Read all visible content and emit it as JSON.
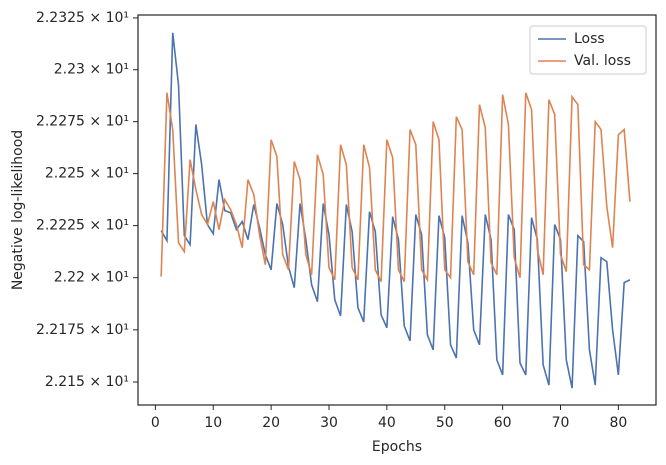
{
  "chart_data": {
    "type": "line",
    "x_label": "Epochs",
    "y_label": "Negative log-likelihood",
    "x": [
      1,
      2,
      3,
      4,
      5,
      6,
      7,
      8,
      9,
      10,
      11,
      12,
      13,
      14,
      15,
      16,
      17,
      18,
      19,
      20,
      21,
      22,
      23,
      24,
      25,
      26,
      27,
      28,
      29,
      30,
      31,
      32,
      33,
      34,
      35,
      36,
      37,
      38,
      39,
      40,
      41,
      42,
      43,
      44,
      45,
      46,
      47,
      48,
      49,
      50,
      51,
      52,
      53,
      54,
      55,
      56,
      57,
      58,
      59,
      60,
      61,
      62,
      63,
      64,
      65,
      66,
      67,
      68,
      69,
      70,
      71,
      72,
      73,
      74,
      75,
      76,
      77,
      78,
      79,
      80,
      81,
      82
    ],
    "series": [
      {
        "name": "Loss",
        "color": "#4c72b0",
        "values": [
          22.2226,
          22.2178,
          22.3178,
          22.2928,
          22.2202,
          22.2159,
          22.2736,
          22.2543,
          22.2255,
          22.2211,
          22.2471,
          22.2322,
          22.2312,
          22.2231,
          22.2269,
          22.2183,
          22.2351,
          22.224,
          22.2111,
          22.2038,
          22.2356,
          22.2255,
          22.2053,
          22.1952,
          22.2356,
          22.2183,
          22.1966,
          22.1885,
          22.2356,
          22.2207,
          22.1894,
          22.1817,
          22.2351,
          22.2221,
          22.1856,
          22.1788,
          22.2317,
          22.2221,
          22.1822,
          22.176,
          22.2293,
          22.2183,
          22.1769,
          22.1697,
          22.2303,
          22.2207,
          22.1726,
          22.1654,
          22.2298,
          22.2192,
          22.1678,
          22.1615,
          22.2298,
          22.2168,
          22.175,
          22.1678,
          22.2303,
          22.2183,
          22.1606,
          22.1534,
          22.2303,
          22.2231,
          22.1591,
          22.1534,
          22.2288,
          22.2183,
          22.1582,
          22.1485,
          22.2255,
          22.2183,
          22.1606,
          22.1471,
          22.2202,
          22.2173,
          22.1654,
          22.1485,
          22.2096,
          22.2077,
          22.175,
          22.1534,
          22.1976,
          22.199
        ]
      },
      {
        "name": "Val. loss",
        "color": "#dd8452",
        "values": [
          22.2005,
          22.2889,
          22.2712,
          22.2168,
          22.2125,
          22.2567,
          22.2423,
          22.2303,
          22.2255,
          22.2365,
          22.2231,
          22.2375,
          22.2327,
          22.2255,
          22.2144,
          22.2471,
          22.2399,
          22.2207,
          22.2062,
          22.2663,
          22.2582,
          22.2111,
          22.2038,
          22.2558,
          22.2471,
          22.2111,
          22.2014,
          22.2591,
          22.2495,
          22.2048,
          22.199,
          22.2639,
          22.2543,
          22.2048,
          22.199,
          22.2639,
          22.2529,
          22.2038,
          22.1981,
          22.2663,
          22.2577,
          22.2038,
          22.1981,
          22.2712,
          22.2639,
          22.2038,
          22.199,
          22.275,
          22.2663,
          22.2038,
          22.2,
          22.2774,
          22.2712,
          22.2077,
          22.2014,
          22.2832,
          22.2721,
          22.2072,
          22.2014,
          22.288,
          22.2736,
          22.2096,
          22.2,
          22.2889,
          22.2808,
          22.2135,
          22.2014,
          22.2856,
          22.2784,
          22.2111,
          22.2029,
          22.287,
          22.2832,
          22.2062,
          22.2038,
          22.275,
          22.2712,
          22.2341,
          22.2144,
          22.2687,
          22.2712,
          22.2365
        ]
      }
    ],
    "xlim": [
      -3,
      86.5
    ],
    "xticks": [
      0,
      10,
      20,
      30,
      40,
      50,
      60,
      70,
      80
    ],
    "ylim": [
      22.139,
      22.3264
    ],
    "y_scale": "log",
    "yticks": [
      {
        "value": 22.15,
        "label": "2.215 × 10¹"
      },
      {
        "value": 22.175,
        "label": "2.2175 × 10¹"
      },
      {
        "value": 22.2,
        "label": "2.22 × 10¹"
      },
      {
        "value": 22.225,
        "label": "2.2225 × 10¹"
      },
      {
        "value": 22.25,
        "label": "2.225 × 10¹"
      },
      {
        "value": 22.275,
        "label": "2.2275 × 10¹"
      },
      {
        "value": 22.3,
        "label": "2.23 × 10¹"
      },
      {
        "value": 22.325,
        "label": "2.2325 × 10¹"
      }
    ],
    "legend": "upper right",
    "grid": false
  }
}
